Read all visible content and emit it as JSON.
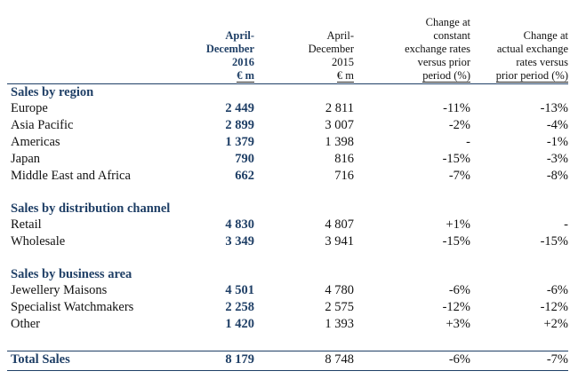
{
  "headers": {
    "col1": [
      "April-",
      "December",
      "2016",
      "€ m"
    ],
    "col2": [
      "April-",
      "December",
      "2015",
      "€ m"
    ],
    "col3": [
      "Change at",
      "constant",
      "exchange rates",
      "versus prior",
      "period (%)"
    ],
    "col4": [
      "Change at",
      "actual exchange",
      "rates versus",
      "prior period (%)"
    ]
  },
  "sections": {
    "region": {
      "title": "Sales by region",
      "rows": [
        {
          "label": "Europe",
          "v2016": "2 449",
          "v2015": "2 811",
          "const": "-11%",
          "actual": "-13%"
        },
        {
          "label": "Asia Pacific",
          "v2016": "2 899",
          "v2015": "3 007",
          "const": "-2%",
          "actual": "-4%"
        },
        {
          "label": "Americas",
          "v2016": "1 379",
          "v2015": "1 398",
          "const": "-",
          "actual": "-1%"
        },
        {
          "label": "Japan",
          "v2016": "790",
          "v2015": "816",
          "const": "-15%",
          "actual": "-3%"
        },
        {
          "label": "Middle East and Africa",
          "v2016": "662",
          "v2015": "716",
          "const": "-7%",
          "actual": "-8%"
        }
      ]
    },
    "channel": {
      "title": "Sales by distribution channel",
      "rows": [
        {
          "label": "Retail",
          "v2016": "4 830",
          "v2015": "4 807",
          "const": "+1%",
          "actual": "-"
        },
        {
          "label": "Wholesale",
          "v2016": "3 349",
          "v2015": "3 941",
          "const": "-15%",
          "actual": "-15%"
        }
      ]
    },
    "business": {
      "title": "Sales by business area",
      "rows": [
        {
          "label": "Jewellery Maisons",
          "v2016": "4 501",
          "v2015": "4 780",
          "const": "-6%",
          "actual": "-6%"
        },
        {
          "label": "Specialist Watchmakers",
          "v2016": "2 258",
          "v2015": "2 575",
          "const": "-12%",
          "actual": "-12%"
        },
        {
          "label": "Other",
          "v2016": "1 420",
          "v2015": "1 393",
          "const": "+3%",
          "actual": "+2%"
        }
      ]
    }
  },
  "total": {
    "label": "Total Sales",
    "v2016": "8 179",
    "v2015": "8 748",
    "const": "-6%",
    "actual": "-7%"
  }
}
